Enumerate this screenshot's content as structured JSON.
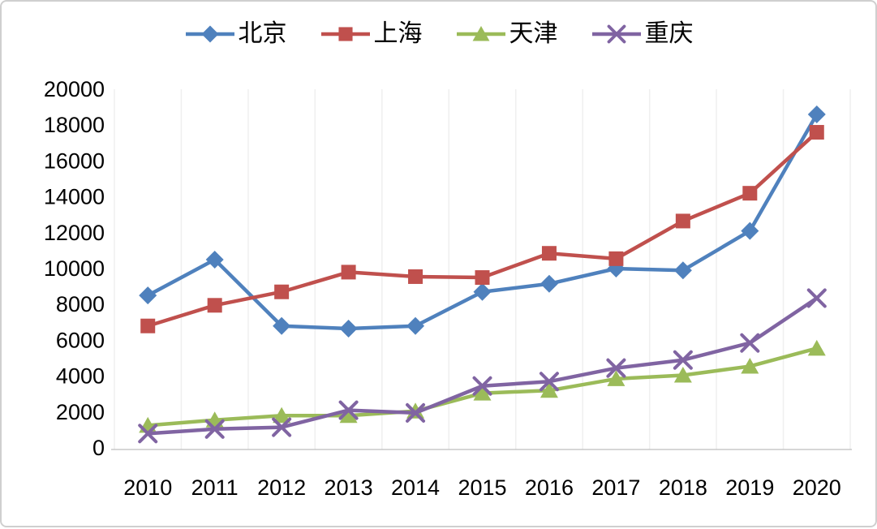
{
  "chart_data": {
    "type": "line",
    "title": "",
    "categories": [
      "2010",
      "2011",
      "2012",
      "2013",
      "2014",
      "2015",
      "2016",
      "2017",
      "2018",
      "2019",
      "2020"
    ],
    "series": [
      {
        "name": "北京",
        "color": "#4F81BD",
        "marker": "diamond",
        "values": [
          8500,
          10500,
          6800,
          6650,
          6800,
          8700,
          9150,
          10000,
          9900,
          12100,
          18600
        ]
      },
      {
        "name": "上海",
        "color": "#C0504D",
        "marker": "square",
        "values": [
          6800,
          7950,
          8700,
          9800,
          9550,
          9500,
          10850,
          10550,
          12650,
          14200,
          17600
        ]
      },
      {
        "name": "天津",
        "color": "#9BBB59",
        "marker": "triangle",
        "values": [
          1250,
          1550,
          1800,
          1800,
          2050,
          3050,
          3200,
          3850,
          4050,
          4550,
          5550
        ]
      },
      {
        "name": "重庆",
        "color": "#8064A2",
        "marker": "x",
        "values": [
          800,
          1050,
          1150,
          2100,
          1950,
          3450,
          3700,
          4450,
          4900,
          5850,
          8350
        ]
      }
    ],
    "xlabel": "",
    "ylabel": "",
    "ylim": [
      0,
      20000
    ],
    "ytick_step": 2000,
    "yticks": [
      "0",
      "2000",
      "4000",
      "6000",
      "8000",
      "10000",
      "12000",
      "14000",
      "16000",
      "18000",
      "20000"
    ],
    "legend_position": "top-center",
    "grid": "vertical-category-gridlines-only",
    "gridline_color": "#EFEFEF",
    "axis_line_color": "#C8C8C8"
  }
}
